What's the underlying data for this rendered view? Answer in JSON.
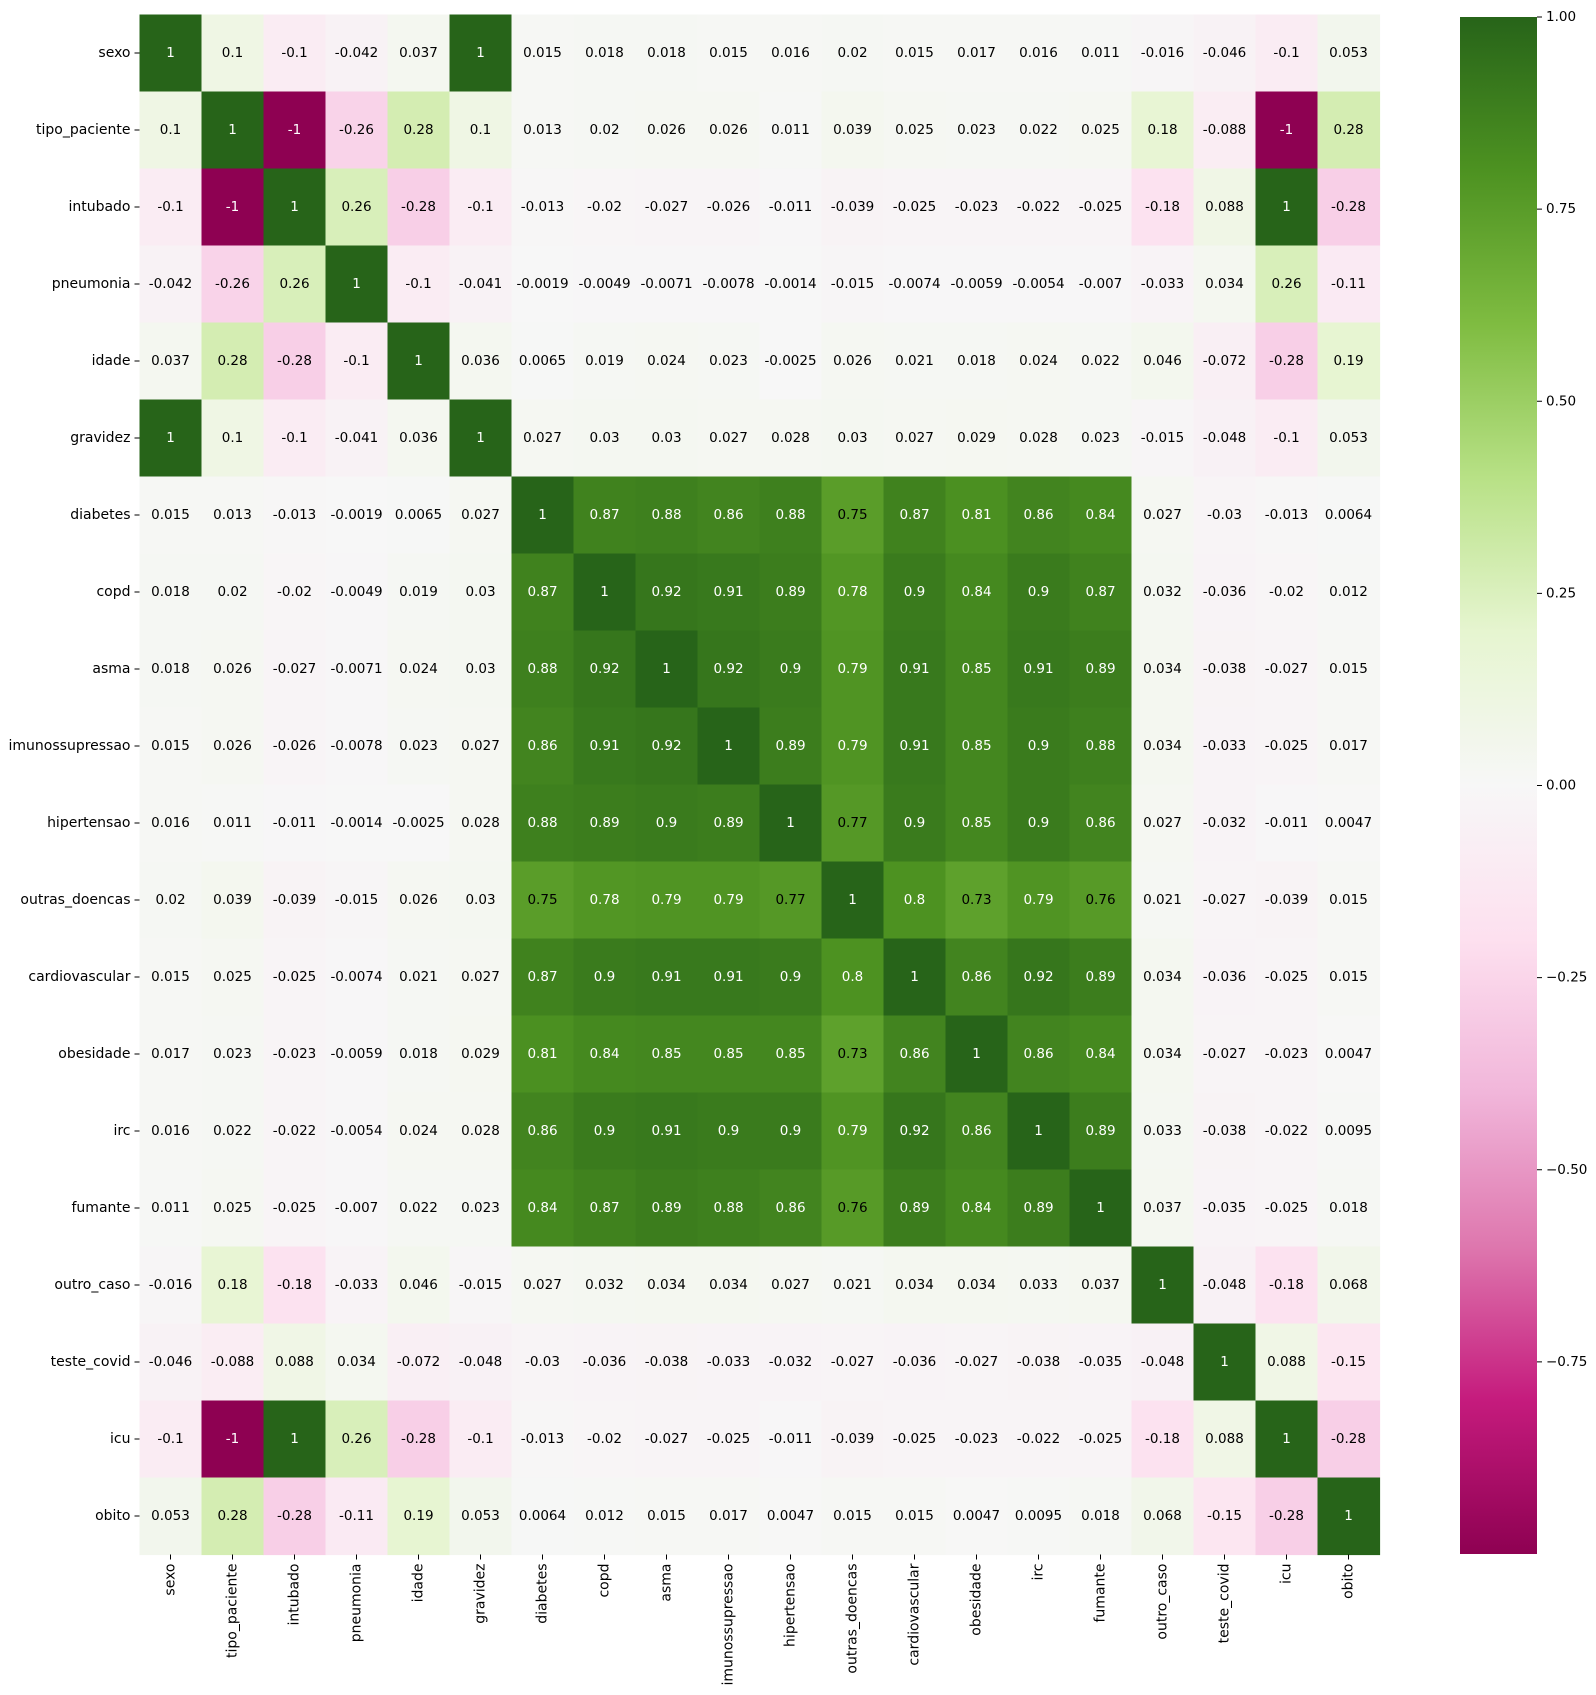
{
  "chart_data": {
    "type": "heatmap",
    "title": "",
    "xlabel": "",
    "ylabel": "",
    "labels": [
      "sexo",
      "tipo_paciente",
      "intubado",
      "pneumonia",
      "idade",
      "gravidez",
      "diabetes",
      "copd",
      "asma",
      "imunossupressao",
      "hipertensao",
      "outras_doencas",
      "cardiovascular",
      "obesidade",
      "irc",
      "fumante",
      "outro_caso",
      "teste_covid",
      "icu",
      "obito"
    ],
    "values": [
      [
        "1",
        "0.1",
        "-0.1",
        "-0.042",
        "0.037",
        "1",
        "0.015",
        "0.018",
        "0.018",
        "0.015",
        "0.016",
        "0.02",
        "0.015",
        "0.017",
        "0.016",
        "0.011",
        "-0.016",
        "-0.046",
        "-0.1",
        "0.053"
      ],
      [
        "0.1",
        "1",
        "-1",
        "-0.26",
        "0.28",
        "0.1",
        "0.013",
        "0.02",
        "0.026",
        "0.026",
        "0.011",
        "0.039",
        "0.025",
        "0.023",
        "0.022",
        "0.025",
        "0.18",
        "-0.088",
        "-1",
        "0.28"
      ],
      [
        "-0.1",
        "-1",
        "1",
        "0.26",
        "-0.28",
        "-0.1",
        "-0.013",
        "-0.02",
        "-0.027",
        "-0.026",
        "-0.011",
        "-0.039",
        "-0.025",
        "-0.023",
        "-0.022",
        "-0.025",
        "-0.18",
        "0.088",
        "1",
        "-0.28"
      ],
      [
        "-0.042",
        "-0.26",
        "0.26",
        "1",
        "-0.1",
        "-0.041",
        "-0.0019",
        "-0.0049",
        "-0.0071",
        "-0.0078",
        "-0.0014",
        "-0.015",
        "-0.0074",
        "-0.0059",
        "-0.0054",
        "-0.007",
        "-0.033",
        "0.034",
        "0.26",
        "-0.11"
      ],
      [
        "0.037",
        "0.28",
        "-0.28",
        "-0.1",
        "1",
        "0.036",
        "0.0065",
        "0.019",
        "0.024",
        "0.023",
        "-0.0025",
        "0.026",
        "0.021",
        "0.018",
        "0.024",
        "0.022",
        "0.046",
        "-0.072",
        "-0.28",
        "0.19"
      ],
      [
        "1",
        "0.1",
        "-0.1",
        "-0.041",
        "0.036",
        "1",
        "0.027",
        "0.03",
        "0.03",
        "0.027",
        "0.028",
        "0.03",
        "0.027",
        "0.029",
        "0.028",
        "0.023",
        "-0.015",
        "-0.048",
        "-0.1",
        "0.053"
      ],
      [
        "0.015",
        "0.013",
        "-0.013",
        "-0.0019",
        "0.0065",
        "0.027",
        "1",
        "0.87",
        "0.88",
        "0.86",
        "0.88",
        "0.75",
        "0.87",
        "0.81",
        "0.86",
        "0.84",
        "0.027",
        "-0.03",
        "-0.013",
        "0.0064"
      ],
      [
        "0.018",
        "0.02",
        "-0.02",
        "-0.0049",
        "0.019",
        "0.03",
        "0.87",
        "1",
        "0.92",
        "0.91",
        "0.89",
        "0.78",
        "0.9",
        "0.84",
        "0.9",
        "0.87",
        "0.032",
        "-0.036",
        "-0.02",
        "0.012"
      ],
      [
        "0.018",
        "0.026",
        "-0.027",
        "-0.0071",
        "0.024",
        "0.03",
        "0.88",
        "0.92",
        "1",
        "0.92",
        "0.9",
        "0.79",
        "0.91",
        "0.85",
        "0.91",
        "0.89",
        "0.034",
        "-0.038",
        "-0.027",
        "0.015"
      ],
      [
        "0.015",
        "0.026",
        "-0.026",
        "-0.0078",
        "0.023",
        "0.027",
        "0.86",
        "0.91",
        "0.92",
        "1",
        "0.89",
        "0.79",
        "0.91",
        "0.85",
        "0.9",
        "0.88",
        "0.034",
        "-0.033",
        "-0.025",
        "0.017"
      ],
      [
        "0.016",
        "0.011",
        "-0.011",
        "-0.0014",
        "-0.0025",
        "0.028",
        "0.88",
        "0.89",
        "0.9",
        "0.89",
        "1",
        "0.77",
        "0.9",
        "0.85",
        "0.9",
        "0.86",
        "0.027",
        "-0.032",
        "-0.011",
        "0.0047"
      ],
      [
        "0.02",
        "0.039",
        "-0.039",
        "-0.015",
        "0.026",
        "0.03",
        "0.75",
        "0.78",
        "0.79",
        "0.79",
        "0.77",
        "1",
        "0.8",
        "0.73",
        "0.79",
        "0.76",
        "0.021",
        "-0.027",
        "-0.039",
        "0.015"
      ],
      [
        "0.015",
        "0.025",
        "-0.025",
        "-0.0074",
        "0.021",
        "0.027",
        "0.87",
        "0.9",
        "0.91",
        "0.91",
        "0.9",
        "0.8",
        "1",
        "0.86",
        "0.92",
        "0.89",
        "0.034",
        "-0.036",
        "-0.025",
        "0.015"
      ],
      [
        "0.017",
        "0.023",
        "-0.023",
        "-0.0059",
        "0.018",
        "0.029",
        "0.81",
        "0.84",
        "0.85",
        "0.85",
        "0.85",
        "0.73",
        "0.86",
        "1",
        "0.86",
        "0.84",
        "0.034",
        "-0.027",
        "-0.023",
        "0.0047"
      ],
      [
        "0.016",
        "0.022",
        "-0.022",
        "-0.0054",
        "0.024",
        "0.028",
        "0.86",
        "0.9",
        "0.91",
        "0.9",
        "0.9",
        "0.79",
        "0.92",
        "0.86",
        "1",
        "0.89",
        "0.033",
        "-0.038",
        "-0.022",
        "0.0095"
      ],
      [
        "0.011",
        "0.025",
        "-0.025",
        "-0.007",
        "0.022",
        "0.023",
        "0.84",
        "0.87",
        "0.89",
        "0.88",
        "0.86",
        "0.76",
        "0.89",
        "0.84",
        "0.89",
        "1",
        "0.037",
        "-0.035",
        "-0.025",
        "0.018"
      ],
      [
        "-0.016",
        "0.18",
        "-0.18",
        "-0.033",
        "0.046",
        "-0.015",
        "0.027",
        "0.032",
        "0.034",
        "0.034",
        "0.027",
        "0.021",
        "0.034",
        "0.034",
        "0.033",
        "0.037",
        "1",
        "-0.048",
        "-0.18",
        "0.068"
      ],
      [
        "-0.046",
        "-0.088",
        "0.088",
        "0.034",
        "-0.072",
        "-0.048",
        "-0.03",
        "-0.036",
        "-0.038",
        "-0.033",
        "-0.032",
        "-0.027",
        "-0.036",
        "-0.027",
        "-0.038",
        "-0.035",
        "-0.048",
        "1",
        "0.088",
        "-0.15"
      ],
      [
        "-0.1",
        "-1",
        "1",
        "0.26",
        "-0.28",
        "-0.1",
        "-0.013",
        "-0.02",
        "-0.027",
        "-0.025",
        "-0.011",
        "-0.039",
        "-0.025",
        "-0.023",
        "-0.022",
        "-0.025",
        "-0.18",
        "0.088",
        "1",
        "-0.28"
      ],
      [
        "0.053",
        "0.28",
        "-0.28",
        "-0.11",
        "0.19",
        "0.053",
        "0.0064",
        "0.012",
        "0.015",
        "0.017",
        "0.0047",
        "0.015",
        "0.015",
        "0.0047",
        "0.0095",
        "0.018",
        "0.068",
        "-0.15",
        "-0.28",
        "1"
      ]
    ],
    "colormap": "PiYG",
    "vmin": -1,
    "vmax": 1,
    "colorbar_ticks": [
      "1.00",
      "0.75",
      "0.50",
      "0.25",
      "0.00",
      "−0.25",
      "−0.50",
      "−0.75"
    ],
    "colorbar_tick_values": [
      1.0,
      0.75,
      0.5,
      0.25,
      0.0,
      -0.25,
      -0.5,
      -0.75
    ]
  }
}
